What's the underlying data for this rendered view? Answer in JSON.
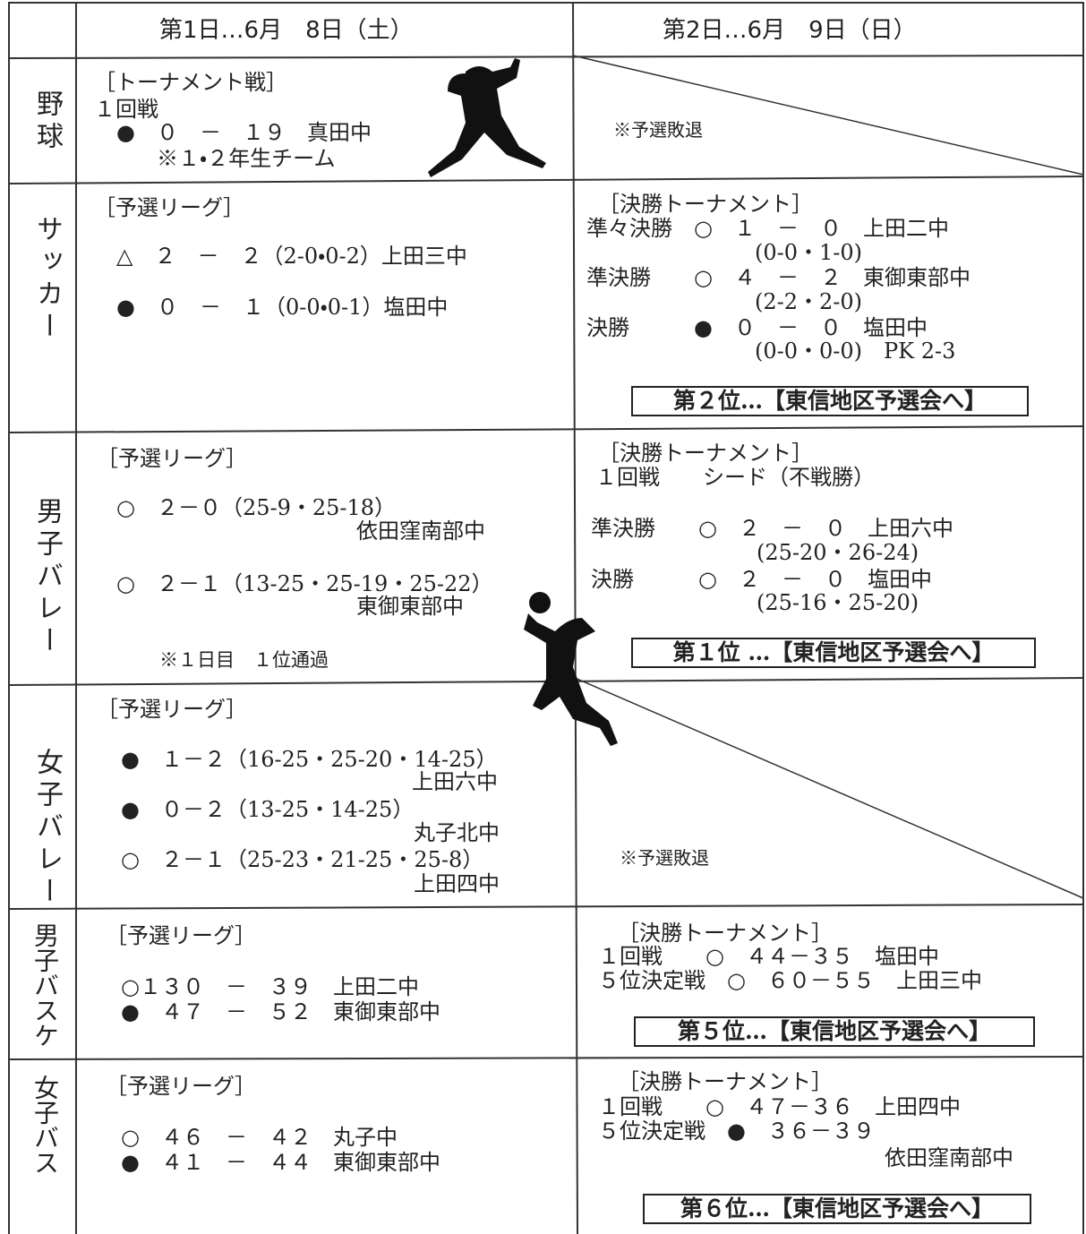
{
  "header": {
    "day1": "第1日…6月　8日（土）",
    "day2": "第2日…6月　9日（日）"
  },
  "rows": [
    {
      "sport": "野球",
      "day1": [
        "［トーナメント戦］",
        "１回戦",
        "●　０　－　１９　真田中",
        "※１・２年生チーム"
      ],
      "day2": [
        "※予選敗退"
      ]
    },
    {
      "sport": "サッカー",
      "day1": [
        "［予選リーグ］",
        "△　２　－　２（2-0・0-2）上田三中",
        "●　０　－　１（0-0・0-1）塩田中"
      ],
      "day2": [
        "［決勝トーナメント］",
        "準々決勝　○　１　－　０　上田二中",
        "(0-0・1-0)",
        "準決勝　　○　４　－　２　東御東部中",
        "(2-2・2-0)",
        "決勝　　　●　０　－　０　塩田中",
        "(0-0・0-0)　PK 2-3"
      ],
      "result": "第２位…【東信地区予選会へ】"
    },
    {
      "sport": "男子バレー",
      "day1": [
        "［予選リーグ］",
        "○　２－０（25-9・25-18）",
        "依田窪南部中",
        "○　２－１（13-25・25-19・25-22）",
        "東御東部中",
        "※１日目　１位通過"
      ],
      "day2": [
        "［決勝トーナメント］",
        "１回戦　　シード（不戦勝）",
        "準決勝　　○　２　－　０　上田六中",
        "(25-20・26-24)",
        "決勝　　　○　２　－　０　塩田中",
        "(25-16・25-20)"
      ],
      "result": "第１位 …【東信地区予選会へ】"
    },
    {
      "sport": "女子バレー",
      "day1": [
        "［予選リーグ］",
        "●　１－２（16-25・25-20・14-25）",
        "上田六中",
        "●　０－２（13-25・14-25）",
        "丸子北中",
        "○　２－１（25-23・21-25・25-8）",
        "上田四中"
      ],
      "day2": [
        "※予選敗退"
      ]
    },
    {
      "sport": "男子バスケ",
      "day1": [
        "［予選リーグ］",
        "○１３０　－　３９　上田二中",
        "●　４７　－　５２　東御東部中"
      ],
      "day2": [
        "［決勝トーナメント］",
        "１回戦　　○　４４－３５　塩田中",
        "５位決定戦　○　６０－５５　上田三中"
      ],
      "result": "第５位…【東信地区予選会へ】"
    },
    {
      "sport": "女子バス",
      "day1": [
        "［予選リーグ］",
        "○　４６　－　４２　丸子中",
        "●　４１　－　４４　東御東部中"
      ],
      "day2": [
        "［決勝トーナメント］",
        "１回戦　　○　４７－３６　上田四中",
        "５位決定戦　●　３６－３９",
        "依田窪南部中"
      ],
      "result": "第６位…【東信地区予選会へ】"
    }
  ]
}
